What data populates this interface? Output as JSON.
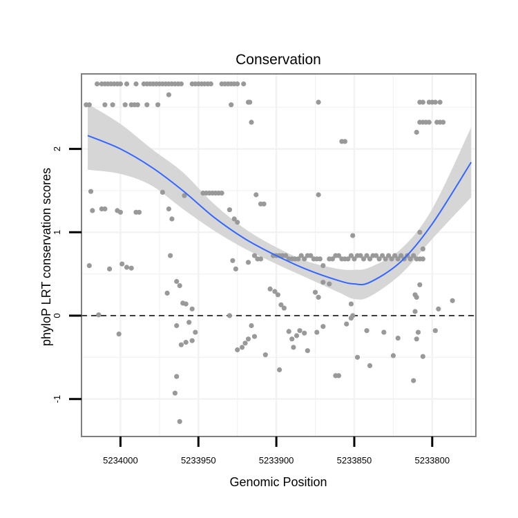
{
  "chart_data": {
    "type": "scatter",
    "title": "Conservation",
    "xlabel": "Genomic Position",
    "ylabel": "phyloP LRT conservation scores",
    "x_reversed": true,
    "xlim": [
      5234025,
      5233772
    ],
    "ylim": [
      -1.45,
      2.9
    ],
    "x_ticks": [
      5234000,
      5233950,
      5233900,
      5233850,
      5233800
    ],
    "x_tick_labels": [
      "5234000",
      "5233950",
      "5233900",
      "5233850",
      "5233800"
    ],
    "y_ticks": [
      -1,
      0,
      1,
      2
    ],
    "y_tick_labels": [
      "-1",
      "0",
      "1",
      "2"
    ],
    "grid": true,
    "reference_line": {
      "y": 0,
      "style": "dashed"
    },
    "colors": {
      "points": "#999999",
      "smooth": "#3366FF",
      "ribbon": "#D6D6D6",
      "panel": "#FFFFFF",
      "grid": "#F2F2F2",
      "border": "#7F7F7F",
      "ref_line": "#000000"
    },
    "series": [
      {
        "points": [
          [
            5234015,
            2.78
          ],
          [
            5234012,
            2.78
          ],
          [
            5234010,
            2.78
          ],
          [
            5234008,
            2.78
          ],
          [
            5234006,
            2.78
          ],
          [
            5234004,
            2.78
          ],
          [
            5234002,
            2.78
          ],
          [
            5234000,
            2.78
          ],
          [
            5233996,
            2.78
          ],
          [
            5233990,
            2.78
          ],
          [
            5233985,
            2.78
          ],
          [
            5233983,
            2.78
          ],
          [
            5233981,
            2.78
          ],
          [
            5233979,
            2.78
          ],
          [
            5233977,
            2.78
          ],
          [
            5233975,
            2.78
          ],
          [
            5233973,
            2.78
          ],
          [
            5233971,
            2.78
          ],
          [
            5233969,
            2.78
          ],
          [
            5233967,
            2.78
          ],
          [
            5233965,
            2.78
          ],
          [
            5233963,
            2.78
          ],
          [
            5233961,
            2.78
          ],
          [
            5233954,
            2.78
          ],
          [
            5233952,
            2.78
          ],
          [
            5233950,
            2.78
          ],
          [
            5233948,
            2.78
          ],
          [
            5233946,
            2.78
          ],
          [
            5233944,
            2.78
          ],
          [
            5233942,
            2.78
          ],
          [
            5233935,
            2.78
          ],
          [
            5233933,
            2.78
          ],
          [
            5233931,
            2.78
          ],
          [
            5233929,
            2.78
          ],
          [
            5233927,
            2.78
          ],
          [
            5233925,
            2.78
          ],
          [
            5233921,
            2.78
          ],
          [
            5234022,
            2.53
          ],
          [
            5234020,
            2.53
          ],
          [
            5234010,
            2.53
          ],
          [
            5234005,
            2.53
          ],
          [
            5233997,
            2.53
          ],
          [
            5233993,
            2.53
          ],
          [
            5233991,
            2.53
          ],
          [
            5233989,
            2.53
          ],
          [
            5233983,
            2.53
          ],
          [
            5233976,
            2.53
          ],
          [
            5233929,
            2.53
          ],
          [
            5233969,
            2.65
          ],
          [
            5233918,
            2.56
          ],
          [
            5233917,
            2.56
          ],
          [
            5233916,
            2.32
          ],
          [
            5233873,
            2.56
          ],
          [
            5233858,
            2.09
          ],
          [
            5233856,
            2.09
          ],
          [
            5233808,
            2.56
          ],
          [
            5233806,
            2.56
          ],
          [
            5233802,
            2.56
          ],
          [
            5233800,
            2.56
          ],
          [
            5233798,
            2.56
          ],
          [
            5233795,
            2.56
          ],
          [
            5233808,
            2.32
          ],
          [
            5233806,
            2.32
          ],
          [
            5233804,
            2.32
          ],
          [
            5233802,
            2.32
          ],
          [
            5233797,
            2.32
          ],
          [
            5233795,
            2.32
          ],
          [
            5233793,
            2.32
          ],
          [
            5233810,
            2.2
          ],
          [
            5234019,
            1.49
          ],
          [
            5234018,
            1.26
          ],
          [
            5234012,
            1.28
          ],
          [
            5234010,
            1.28
          ],
          [
            5234002,
            1.26
          ],
          [
            5234000,
            1.24
          ],
          [
            5233990,
            1.24
          ],
          [
            5233988,
            1.24
          ],
          [
            5233973,
            1.48
          ],
          [
            5233969,
            1.28
          ],
          [
            5233967,
            1.16
          ],
          [
            5233959,
            1.44
          ],
          [
            5233947,
            1.47
          ],
          [
            5233945,
            1.47
          ],
          [
            5233943,
            1.47
          ],
          [
            5233941,
            1.47
          ],
          [
            5233939,
            1.47
          ],
          [
            5233937,
            1.47
          ],
          [
            5233935,
            1.47
          ],
          [
            5233930,
            1.27
          ],
          [
            5233927,
            1.16
          ],
          [
            5233925,
            1.12
          ],
          [
            5233913,
            1.45
          ],
          [
            5233910,
            1.34
          ],
          [
            5233908,
            1.34
          ],
          [
            5233873,
            1.45
          ],
          [
            5234020,
            0.6
          ],
          [
            5234007,
            0.56
          ],
          [
            5233999,
            0.62
          ],
          [
            5233996,
            0.58
          ],
          [
            5233993,
            0.57
          ],
          [
            5233968,
            0.72
          ],
          [
            5233928,
            0.66
          ],
          [
            5233926,
            0.56
          ],
          [
            5233918,
            0.64
          ],
          [
            5233914,
            0.72
          ],
          [
            5233912,
            0.68
          ],
          [
            5233910,
            0.68
          ],
          [
            5233902,
            0.72
          ],
          [
            5233900,
            0.72
          ],
          [
            5233898,
            0.72
          ],
          [
            5233896,
            0.72
          ],
          [
            5233894,
            0.72
          ],
          [
            5233892,
            0.68
          ],
          [
            5233890,
            0.68
          ],
          [
            5233888,
            0.68
          ],
          [
            5233886,
            0.68
          ],
          [
            5233884,
            0.72
          ],
          [
            5233882,
            0.68
          ],
          [
            5233880,
            0.72
          ],
          [
            5233878,
            0.72
          ],
          [
            5233876,
            0.68
          ],
          [
            5233874,
            0.68
          ],
          [
            5233872,
            0.68
          ],
          [
            5233870,
            0.6
          ],
          [
            5233866,
            0.68
          ],
          [
            5233864,
            0.68
          ],
          [
            5233862,
            0.72
          ],
          [
            5233860,
            0.72
          ],
          [
            5233858,
            0.68
          ],
          [
            5233856,
            0.68
          ],
          [
            5233854,
            0.68
          ],
          [
            5233852,
            0.72
          ],
          [
            5233850,
            0.68
          ],
          [
            5233848,
            0.72
          ],
          [
            5233846,
            0.72
          ],
          [
            5233844,
            0.68
          ],
          [
            5233842,
            0.72
          ],
          [
            5233840,
            0.68
          ],
          [
            5233838,
            0.72
          ],
          [
            5233836,
            0.72
          ],
          [
            5233834,
            0.68
          ],
          [
            5233832,
            0.72
          ],
          [
            5233830,
            0.68
          ],
          [
            5233828,
            0.72
          ],
          [
            5233826,
            0.68
          ],
          [
            5233824,
            0.72
          ],
          [
            5233822,
            0.68
          ],
          [
            5233820,
            0.72
          ],
          [
            5233818,
            0.68
          ],
          [
            5233816,
            0.72
          ],
          [
            5233814,
            0.68
          ],
          [
            5233812,
            0.72
          ],
          [
            5233810,
            0.68
          ],
          [
            5233808,
            0.68
          ],
          [
            5233806,
            0.68
          ],
          [
            5233851,
            0.96
          ],
          [
            5233808,
            1.0
          ],
          [
            5233806,
            0.8
          ],
          [
            5233808,
            0.37
          ],
          [
            5233811,
            0.25
          ],
          [
            5233810,
            0.22
          ],
          [
            5233970,
            0.27
          ],
          [
            5233964,
            0.41
          ],
          [
            5233962,
            0.36
          ],
          [
            5233960,
            0.15
          ],
          [
            5233958,
            0.14
          ],
          [
            5233954,
            0.08
          ],
          [
            5233904,
            0.32
          ],
          [
            5233901,
            0.29
          ],
          [
            5233899,
            0.25
          ],
          [
            5233897,
            0.13
          ],
          [
            5233895,
            0.09
          ],
          [
            5233875,
            0.28
          ],
          [
            5233873,
            0.22
          ],
          [
            5233870,
            0.4
          ],
          [
            5233866,
            0.38
          ],
          [
            5233852,
            0.14
          ],
          [
            5233811,
            0.05
          ],
          [
            5233796,
            0.08
          ],
          [
            5233787,
            0.18
          ],
          [
            5234014,
            0.01
          ],
          [
            5233930,
            0.0
          ],
          [
            5233851,
            0.0
          ],
          [
            5234001,
            -0.22
          ],
          [
            5233964,
            -0.12
          ],
          [
            5233961,
            -0.35
          ],
          [
            5233958,
            -0.32
          ],
          [
            5233956,
            -0.08
          ],
          [
            5233954,
            -0.3
          ],
          [
            5233952,
            -0.2
          ],
          [
            5233925,
            -0.41
          ],
          [
            5233922,
            -0.38
          ],
          [
            5233920,
            -0.33
          ],
          [
            5233918,
            -0.28
          ],
          [
            5233916,
            -0.12
          ],
          [
            5233914,
            -0.25
          ],
          [
            5233907,
            -0.47
          ],
          [
            5233898,
            -0.65
          ],
          [
            5233892,
            -0.19
          ],
          [
            5233890,
            -0.28
          ],
          [
            5233889,
            -0.38
          ],
          [
            5233887,
            -0.24
          ],
          [
            5233885,
            -0.18
          ],
          [
            5233882,
            -0.21
          ],
          [
            5233880,
            -0.42
          ],
          [
            5233874,
            -0.2
          ],
          [
            5233870,
            -0.13
          ],
          [
            5233862,
            -0.72
          ],
          [
            5233860,
            -0.72
          ],
          [
            5233855,
            -0.1
          ],
          [
            5233852,
            -0.03
          ],
          [
            5233848,
            -0.5
          ],
          [
            5233842,
            -0.18
          ],
          [
            5233840,
            -0.6
          ],
          [
            5233831,
            -0.2
          ],
          [
            5233825,
            -0.48
          ],
          [
            5233822,
            -0.27
          ],
          [
            5233812,
            -0.78
          ],
          [
            5233810,
            -0.28
          ],
          [
            5233809,
            -0.2
          ],
          [
            5233806,
            -0.49
          ],
          [
            5233798,
            -0.18
          ],
          [
            5233964,
            -0.73
          ],
          [
            5233965,
            -0.93
          ],
          [
            5233962,
            -1.27
          ]
        ]
      }
    ],
    "smooth_fit": {
      "method": "loess",
      "x": [
        5234021,
        5234000,
        5233980,
        5233960,
        5233940,
        5233920,
        5233900,
        5233880,
        5233860,
        5233850,
        5233840,
        5233820,
        5233800,
        5233775
      ],
      "y": [
        2.16,
        2.0,
        1.78,
        1.5,
        1.18,
        0.92,
        0.72,
        0.55,
        0.42,
        0.38,
        0.4,
        0.65,
        1.1,
        1.84
      ],
      "lower": [
        1.75,
        1.7,
        1.56,
        1.28,
        1.02,
        0.8,
        0.62,
        0.45,
        0.28,
        0.2,
        0.23,
        0.5,
        0.92,
        1.42
      ],
      "upper": [
        2.54,
        2.3,
        2.0,
        1.72,
        1.34,
        1.04,
        0.82,
        0.65,
        0.56,
        0.55,
        0.58,
        0.8,
        1.28,
        2.26
      ]
    }
  }
}
